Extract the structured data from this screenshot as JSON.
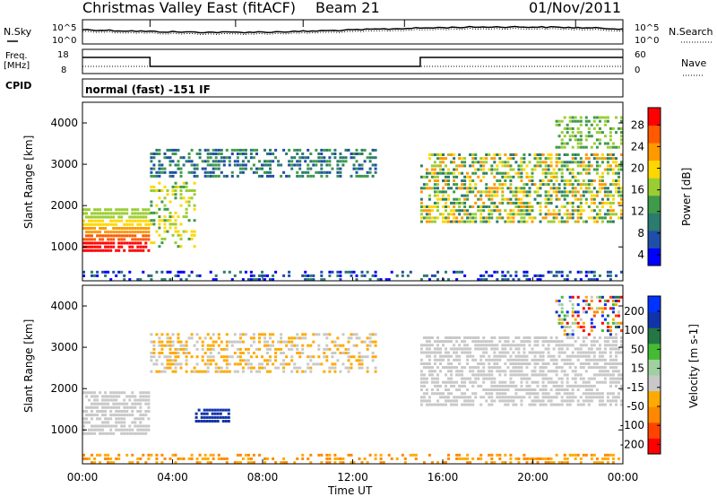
{
  "header": {
    "station": "Christmas Valley East (fitACF)",
    "beam": "Beam 21",
    "date": "01/Nov/2011"
  },
  "panels": {
    "nsky_label": "N.Sky",
    "nsky_ticks": [
      "10^5",
      "10^0"
    ],
    "nsearch_label": "N.Search",
    "nsearch_ticks": [
      "10^5",
      "10^0"
    ],
    "freq_label_1": "Freq.",
    "freq_label_2": "[MHz]",
    "freq_ticks": [
      "18",
      "8"
    ],
    "nave_label": "Nave",
    "nave_ticks": [
      "60",
      "0"
    ],
    "cpid_label": "CPID",
    "cpid_text": "normal (fast) -151 IF"
  },
  "colors": {
    "power_scale": [
      "#0000ff",
      "#1f4ea8",
      "#2b7b6e",
      "#3f9a4a",
      "#9acd32",
      "#ffd700",
      "#ff9900",
      "#ff5a00",
      "#ff0000"
    ],
    "velocity_scale": [
      "#ff0000",
      "#ff4400",
      "#ff8800",
      "#ffaa00",
      "#c8c8c8",
      "#a0d0a0",
      "#44bb33",
      "#227744",
      "#1133aa",
      "#0033ff"
    ],
    "grey_mid": "#c0c0c0"
  },
  "chart_data": [
    {
      "type": "heatmap",
      "name": "power",
      "ylabel": "Slant Range [km]",
      "yticks": [
        "4000",
        "3000",
        "2000",
        "1000"
      ],
      "ylim": [
        180,
        4500
      ],
      "colorbar_label": "Power [dB]",
      "colorbar_ticks": [
        "28",
        "24",
        "20",
        "16",
        "12",
        "8",
        "4"
      ],
      "colorbar_range": [
        0,
        30
      ]
    },
    {
      "type": "heatmap",
      "name": "velocity",
      "ylabel": "Slant Range [km]",
      "yticks": [
        "4000",
        "3000",
        "2000",
        "1000"
      ],
      "ylim": [
        180,
        4500
      ],
      "colorbar_label": "Velocity [m s-1]",
      "colorbar_ticks": [
        "200",
        "100",
        "50",
        "15",
        "-15",
        "-50",
        "-100",
        "-200"
      ],
      "colorbar_range": [
        -250,
        250
      ]
    }
  ],
  "time_axis": {
    "label": "Time UT",
    "ticks": [
      "00:00",
      "04:00",
      "08:00",
      "12:00",
      "16:00",
      "20:00",
      "00:00"
    ],
    "range_hours": [
      0,
      24
    ]
  }
}
